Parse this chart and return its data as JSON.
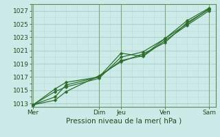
{
  "background_color": "#cceae8",
  "grid_color_major": "#aacfcd",
  "grid_color_minor": "#bddbd9",
  "line_color": "#2d6e2d",
  "marker_color": "#2d6e2d",
  "xlabel": "Pression niveau de la mer( hPa )",
  "ylim": [
    1012.5,
    1028.0
  ],
  "yticks": [
    1013,
    1015,
    1017,
    1019,
    1021,
    1023,
    1025,
    1027
  ],
  "day_labels": [
    "Mer",
    "",
    "",
    "Dim",
    "Jeu",
    "",
    "Ven",
    "",
    "Sam"
  ],
  "day_positions": [
    0,
    3,
    4,
    6,
    8
  ],
  "day_tick_positions": [
    0,
    3,
    4,
    6,
    8
  ],
  "day_label_names": [
    "Mer",
    "Dim",
    "Jeu",
    "Ven",
    "Sam"
  ],
  "xlim": [
    -0.05,
    8.3
  ],
  "series": [
    [
      1012.8,
      1013.5,
      1014.8,
      1017.2,
      1019.3,
      1020.5,
      1022.2,
      1025.2,
      1027.2
    ],
    [
      1012.8,
      1014.8,
      1015.5,
      1016.8,
      1020.0,
      1020.8,
      1022.8,
      1025.0,
      1027.3
    ],
    [
      1012.8,
      1015.2,
      1016.2,
      1017.0,
      1020.6,
      1020.1,
      1022.5,
      1024.8,
      1027.0
    ],
    [
      1012.8,
      1014.0,
      1015.8,
      1017.0,
      1019.5,
      1020.2,
      1022.8,
      1025.5,
      1027.4
    ]
  ],
  "x_positions": [
    0,
    1,
    1.5,
    3,
    4,
    5,
    6,
    7,
    8
  ],
  "xlabel_fontsize": 7.5,
  "tick_fontsize": 6.5,
  "marker_size": 2.5
}
